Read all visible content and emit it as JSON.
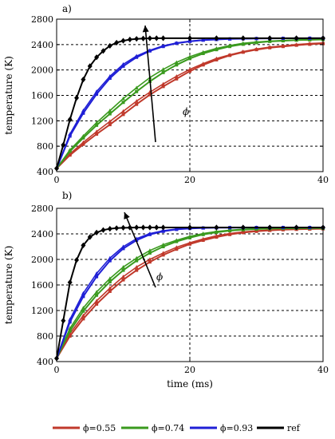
{
  "colors": {
    "phi_055": "#c0392b",
    "phi_074": "#3a9a1e",
    "phi_093": "#1f1fd6",
    "ref": "#000000"
  },
  "legend": [
    {
      "label": "ϕ=0.55",
      "color_key": "phi_055"
    },
    {
      "label": "ϕ=0.74",
      "color_key": "phi_074"
    },
    {
      "label": "ϕ=0.93",
      "color_key": "phi_093"
    },
    {
      "label": "ref",
      "color_key": "ref"
    }
  ],
  "chart_data": [
    {
      "type": "line",
      "panel_label": "a)",
      "ylabel": "temperature (K)",
      "xlabel": "",
      "xlim": [
        0,
        40
      ],
      "ylim": [
        400,
        2800
      ],
      "x_ticks": [
        "0",
        "20",
        "40"
      ],
      "y_ticks": [
        "400",
        "800",
        "1200",
        "1600",
        "2000",
        "2400",
        "2800"
      ],
      "annotation": "ϕ",
      "grid": "dashed",
      "series": [
        {
          "name": "ϕ=0.55",
          "color_key": "phi_055",
          "x": [
            0,
            2,
            4,
            6,
            8,
            10,
            12,
            14,
            16,
            18,
            20,
            22,
            24,
            26,
            28,
            30,
            32,
            34,
            36,
            38,
            40
          ],
          "y": [
            450,
            660,
            830,
            990,
            1140,
            1300,
            1460,
            1610,
            1740,
            1860,
            1980,
            2080,
            2160,
            2230,
            2280,
            2320,
            2350,
            2370,
            2390,
            2405,
            2415
          ]
        },
        {
          "name": "ϕ=0.55",
          "color_key": "phi_055",
          "x": [
            0,
            2,
            4,
            6,
            8,
            10,
            12,
            14,
            16,
            18,
            20,
            22,
            24,
            26,
            28,
            30,
            32,
            34,
            36,
            38,
            40
          ],
          "y": [
            450,
            680,
            860,
            1030,
            1190,
            1350,
            1510,
            1650,
            1780,
            1900,
            2010,
            2100,
            2180,
            2240,
            2290,
            2330,
            2360,
            2380,
            2400,
            2415,
            2425
          ]
        },
        {
          "name": "ϕ=0.74",
          "color_key": "phi_074",
          "x": [
            0,
            2,
            4,
            6,
            8,
            10,
            12,
            14,
            16,
            18,
            20,
            22,
            24,
            26,
            28,
            30,
            32,
            34,
            36,
            38,
            40
          ],
          "y": [
            450,
            720,
            930,
            1130,
            1310,
            1490,
            1660,
            1820,
            1960,
            2080,
            2180,
            2260,
            2320,
            2370,
            2405,
            2430,
            2450,
            2460,
            2470,
            2475,
            2480
          ]
        },
        {
          "name": "ϕ=0.74",
          "color_key": "phi_074",
          "x": [
            0,
            2,
            4,
            6,
            8,
            10,
            12,
            14,
            16,
            18,
            20,
            22,
            24,
            26,
            28,
            30,
            32,
            34,
            36,
            38,
            40
          ],
          "y": [
            450,
            740,
            960,
            1170,
            1360,
            1550,
            1720,
            1880,
            2010,
            2120,
            2210,
            2280,
            2340,
            2385,
            2420,
            2440,
            2455,
            2465,
            2472,
            2478,
            2482
          ]
        },
        {
          "name": "ϕ=0.93",
          "color_key": "phi_093",
          "x": [
            0,
            2,
            4,
            6,
            8,
            10,
            12,
            14,
            16,
            18,
            20,
            22,
            24,
            26,
            28,
            30,
            32,
            34,
            36,
            38,
            40
          ],
          "y": [
            450,
            960,
            1320,
            1620,
            1870,
            2060,
            2200,
            2300,
            2370,
            2420,
            2450,
            2470,
            2480,
            2488,
            2492,
            2495,
            2497,
            2498,
            2499,
            2500,
            2500
          ]
        },
        {
          "name": "ϕ=0.93",
          "color_key": "phi_093",
          "x": [
            0,
            2,
            4,
            6,
            8,
            10,
            12,
            14,
            16,
            18,
            20,
            22,
            24,
            26,
            28,
            30,
            32,
            34,
            36,
            38,
            40
          ],
          "y": [
            450,
            990,
            1360,
            1660,
            1900,
            2090,
            2220,
            2310,
            2380,
            2425,
            2455,
            2472,
            2483,
            2490,
            2494,
            2496,
            2498,
            2499,
            2500,
            2500,
            2500
          ]
        },
        {
          "name": "ref",
          "color_key": "ref",
          "x": [
            0,
            1,
            2,
            3,
            4,
            5,
            6,
            7,
            8,
            9,
            10,
            11,
            12,
            13,
            14,
            15,
            16,
            18,
            20,
            22,
            24,
            26,
            28,
            30,
            32,
            34,
            36,
            38,
            40
          ],
          "y": [
            450,
            820,
            1220,
            1560,
            1850,
            2060,
            2200,
            2300,
            2380,
            2430,
            2460,
            2480,
            2490,
            2495,
            2498,
            2500,
            2500,
            2500,
            2500,
            2500,
            2500,
            2500,
            2500,
            2500,
            2500,
            2500,
            2500,
            2500,
            2500
          ]
        }
      ]
    },
    {
      "type": "line",
      "panel_label": "b)",
      "ylabel": "temperature (K)",
      "xlabel": "time (ms)",
      "xlim": [
        0,
        40
      ],
      "ylim": [
        400,
        2800
      ],
      "x_ticks": [
        "0",
        "20",
        "40"
      ],
      "y_ticks": [
        "400",
        "800",
        "1200",
        "1600",
        "2000",
        "2400",
        "2800"
      ],
      "annotation": "ϕ",
      "grid": "dashed",
      "series": [
        {
          "name": "ϕ=0.55",
          "color_key": "phi_055",
          "x": [
            0,
            2,
            4,
            6,
            8,
            10,
            12,
            14,
            16,
            18,
            20,
            22,
            24,
            26,
            28,
            30,
            32,
            34,
            36,
            38,
            40
          ],
          "y": [
            450,
            800,
            1070,
            1300,
            1500,
            1680,
            1830,
            1960,
            2070,
            2160,
            2240,
            2300,
            2350,
            2390,
            2420,
            2440,
            2455,
            2465,
            2472,
            2476,
            2480
          ]
        },
        {
          "name": "ϕ=0.55",
          "color_key": "phi_055",
          "x": [
            0,
            2,
            4,
            6,
            8,
            10,
            12,
            14,
            16,
            18,
            20,
            22,
            24,
            26,
            28,
            30,
            32,
            34,
            36,
            38,
            40
          ],
          "y": [
            450,
            840,
            1120,
            1350,
            1550,
            1730,
            1880,
            2000,
            2100,
            2190,
            2260,
            2320,
            2370,
            2405,
            2430,
            2448,
            2460,
            2468,
            2474,
            2478,
            2481
          ]
        },
        {
          "name": "ϕ=0.74",
          "color_key": "phi_074",
          "x": [
            0,
            2,
            4,
            6,
            8,
            10,
            12,
            14,
            16,
            18,
            20,
            22,
            24,
            26,
            28,
            30,
            32,
            34,
            36,
            38,
            40
          ],
          "y": [
            450,
            880,
            1190,
            1440,
            1650,
            1830,
            1980,
            2100,
            2200,
            2280,
            2340,
            2390,
            2425,
            2450,
            2465,
            2475,
            2482,
            2486,
            2488,
            2490,
            2490
          ]
        },
        {
          "name": "ϕ=0.74",
          "color_key": "phi_074",
          "x": [
            0,
            2,
            4,
            6,
            8,
            10,
            12,
            14,
            16,
            18,
            20,
            22,
            24,
            26,
            28,
            30,
            32,
            34,
            36,
            38,
            40
          ],
          "y": [
            450,
            920,
            1240,
            1490,
            1700,
            1880,
            2020,
            2140,
            2230,
            2300,
            2360,
            2405,
            2438,
            2458,
            2472,
            2480,
            2485,
            2488,
            2490,
            2490,
            2490
          ]
        },
        {
          "name": "ϕ=0.93",
          "color_key": "phi_093",
          "x": [
            0,
            2,
            4,
            6,
            8,
            10,
            12,
            14,
            16,
            18,
            20,
            22,
            24,
            26,
            28,
            30,
            32,
            34,
            36,
            38,
            40
          ],
          "y": [
            450,
            1020,
            1420,
            1730,
            1980,
            2170,
            2300,
            2390,
            2440,
            2470,
            2485,
            2492,
            2496,
            2498,
            2499,
            2500,
            2500,
            2500,
            2500,
            2500,
            2500
          ]
        },
        {
          "name": "ϕ=0.93",
          "color_key": "phi_093",
          "x": [
            0,
            2,
            4,
            6,
            8,
            10,
            12,
            14,
            16,
            18,
            20,
            22,
            24,
            26,
            28,
            30,
            32,
            34,
            36,
            38,
            40
          ],
          "y": [
            450,
            1060,
            1470,
            1780,
            2020,
            2200,
            2325,
            2405,
            2450,
            2476,
            2488,
            2494,
            2497,
            2499,
            2500,
            2500,
            2500,
            2500,
            2500,
            2500,
            2500
          ]
        },
        {
          "name": "ref",
          "color_key": "ref",
          "x": [
            0,
            1,
            2,
            3,
            4,
            5,
            6,
            7,
            8,
            9,
            10,
            11,
            12,
            13,
            14,
            15,
            16,
            18,
            20,
            22,
            24,
            26,
            28,
            30,
            32,
            34,
            36,
            38,
            40
          ],
          "y": [
            450,
            1040,
            1640,
            1990,
            2220,
            2350,
            2420,
            2460,
            2480,
            2490,
            2495,
            2498,
            2500,
            2500,
            2500,
            2500,
            2500,
            2500,
            2500,
            2500,
            2500,
            2500,
            2500,
            2500,
            2500,
            2500,
            2500,
            2500,
            2500
          ]
        }
      ]
    }
  ]
}
